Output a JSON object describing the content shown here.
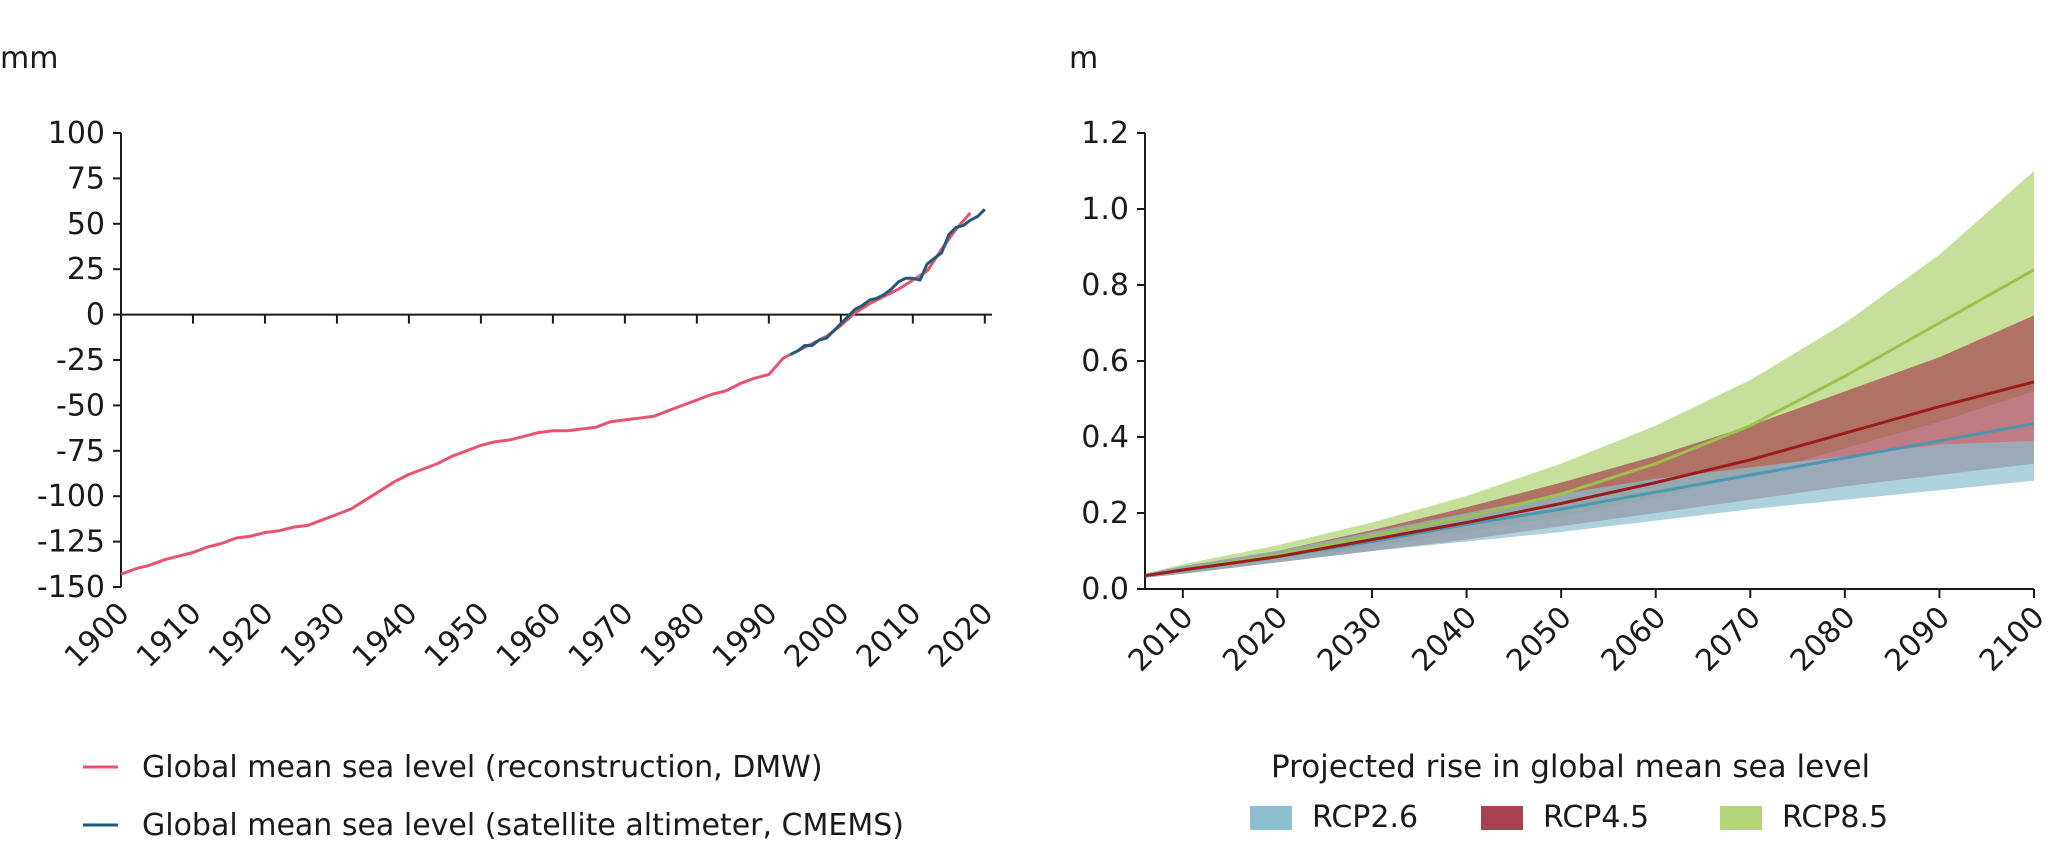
{
  "chart_data": [
    {
      "type": "line",
      "ylabel": "mm",
      "xlim": [
        1900,
        2021
      ],
      "ylim": [
        -150,
        100
      ],
      "xticks": [
        1900,
        1910,
        1920,
        1930,
        1940,
        1950,
        1960,
        1970,
        1980,
        1990,
        2000,
        2010,
        2020
      ],
      "yticks": [
        100,
        75,
        50,
        25,
        0,
        -25,
        -50,
        -75,
        -100,
        -125,
        -150
      ],
      "zero_line": true,
      "legend_position": "bottom-left",
      "series": [
        {
          "name": "Global mean sea level (reconstruction, DMW)",
          "color": "#e8546d",
          "x": [
            1900,
            1902,
            1904,
            1906,
            1908,
            1910,
            1912,
            1914,
            1916,
            1918,
            1920,
            1922,
            1924,
            1926,
            1928,
            1930,
            1932,
            1934,
            1936,
            1938,
            1940,
            1942,
            1944,
            1946,
            1948,
            1950,
            1952,
            1954,
            1956,
            1958,
            1960,
            1962,
            1964,
            1966,
            1968,
            1970,
            1972,
            1974,
            1976,
            1978,
            1980,
            1982,
            1984,
            1986,
            1988,
            1990,
            1992,
            1994,
            1996,
            1998,
            2000,
            2002,
            2004,
            2006,
            2008,
            2010,
            2012,
            2014,
            2016,
            2018
          ],
          "values": [
            -143,
            -140,
            -138,
            -135,
            -133,
            -131,
            -128,
            -126,
            -123,
            -122,
            -120,
            -119,
            -117,
            -116,
            -113,
            -110,
            -107,
            -102,
            -97,
            -92,
            -88,
            -85,
            -82,
            -78,
            -75,
            -72,
            -70,
            -69,
            -67,
            -65,
            -64,
            -64,
            -63,
            -62,
            -59,
            -58,
            -57,
            -56,
            -53,
            -50,
            -47,
            -44,
            -42,
            -38,
            -35,
            -33,
            -24,
            -20,
            -16,
            -12,
            -6,
            1,
            6,
            10,
            14,
            19,
            24,
            36,
            47,
            56
          ]
        },
        {
          "name": "Global mean sea level (satellite altimeter, CMEMS)",
          "color": "#1f5c7a",
          "x": [
            1993,
            1994,
            1995,
            1996,
            1997,
            1998,
            1999,
            2000,
            2001,
            2002,
            2003,
            2004,
            2005,
            2006,
            2007,
            2008,
            2009,
            2010,
            2011,
            2012,
            2013,
            2014,
            2015,
            2016,
            2017,
            2018,
            2019,
            2020
          ],
          "values": [
            -22,
            -20,
            -17,
            -17,
            -14,
            -13,
            -9,
            -5,
            -1,
            3,
            5,
            8,
            9,
            11,
            14,
            18,
            20,
            20,
            19,
            28,
            31,
            34,
            44,
            48,
            49,
            52,
            54,
            58
          ]
        }
      ]
    },
    {
      "type": "area",
      "ylabel": "m",
      "xlim": [
        2006,
        2100
      ],
      "ylim": [
        0,
        1.2
      ],
      "xticks": [
        2010,
        2020,
        2030,
        2040,
        2050,
        2060,
        2070,
        2080,
        2090,
        2100
      ],
      "yticks": [
        "1.2",
        "1.0",
        "0.8",
        "0.6",
        "0.4",
        "0.2",
        "0.0"
      ],
      "legend_title": "Projected rise in global mean sea level",
      "legend_position": "bottom",
      "x": [
        2006,
        2010,
        2020,
        2030,
        2040,
        2050,
        2060,
        2070,
        2080,
        2090,
        2100
      ],
      "series": [
        {
          "name": "RCP2.6",
          "color": "#4a98b0",
          "band_color": "#8cbfcf",
          "mean": [
            0.035,
            0.05,
            0.085,
            0.125,
            0.17,
            0.21,
            0.255,
            0.3,
            0.345,
            0.39,
            0.435
          ],
          "lower": [
            0.03,
            0.04,
            0.07,
            0.1,
            0.125,
            0.15,
            0.18,
            0.21,
            0.235,
            0.26,
            0.285
          ],
          "upper": [
            0.04,
            0.06,
            0.1,
            0.15,
            0.2,
            0.25,
            0.29,
            0.32,
            0.35,
            0.38,
            0.39
          ]
        },
        {
          "name": "RCP4.5",
          "color": "#9c1c1c",
          "band_color": "#a6434f",
          "mean": [
            0.035,
            0.05,
            0.085,
            0.13,
            0.175,
            0.225,
            0.28,
            0.34,
            0.41,
            0.48,
            0.545
          ],
          "lower": [
            0.03,
            0.04,
            0.07,
            0.1,
            0.13,
            0.165,
            0.2,
            0.235,
            0.27,
            0.3,
            0.33
          ],
          "upper": [
            0.04,
            0.06,
            0.1,
            0.155,
            0.215,
            0.28,
            0.35,
            0.43,
            0.52,
            0.61,
            0.72
          ]
        },
        {
          "name": "RCP8.5",
          "color": "#9dc24a",
          "band_color": "#b3d67a",
          "mean": [
            0.035,
            0.05,
            0.09,
            0.14,
            0.19,
            0.25,
            0.33,
            0.43,
            0.56,
            0.7,
            0.84
          ],
          "lower": [
            0.03,
            0.04,
            0.075,
            0.11,
            0.15,
            0.19,
            0.24,
            0.3,
            0.37,
            0.44,
            0.52
          ],
          "upper": [
            0.04,
            0.065,
            0.115,
            0.175,
            0.245,
            0.33,
            0.43,
            0.55,
            0.7,
            0.88,
            1.1
          ]
        }
      ]
    }
  ]
}
